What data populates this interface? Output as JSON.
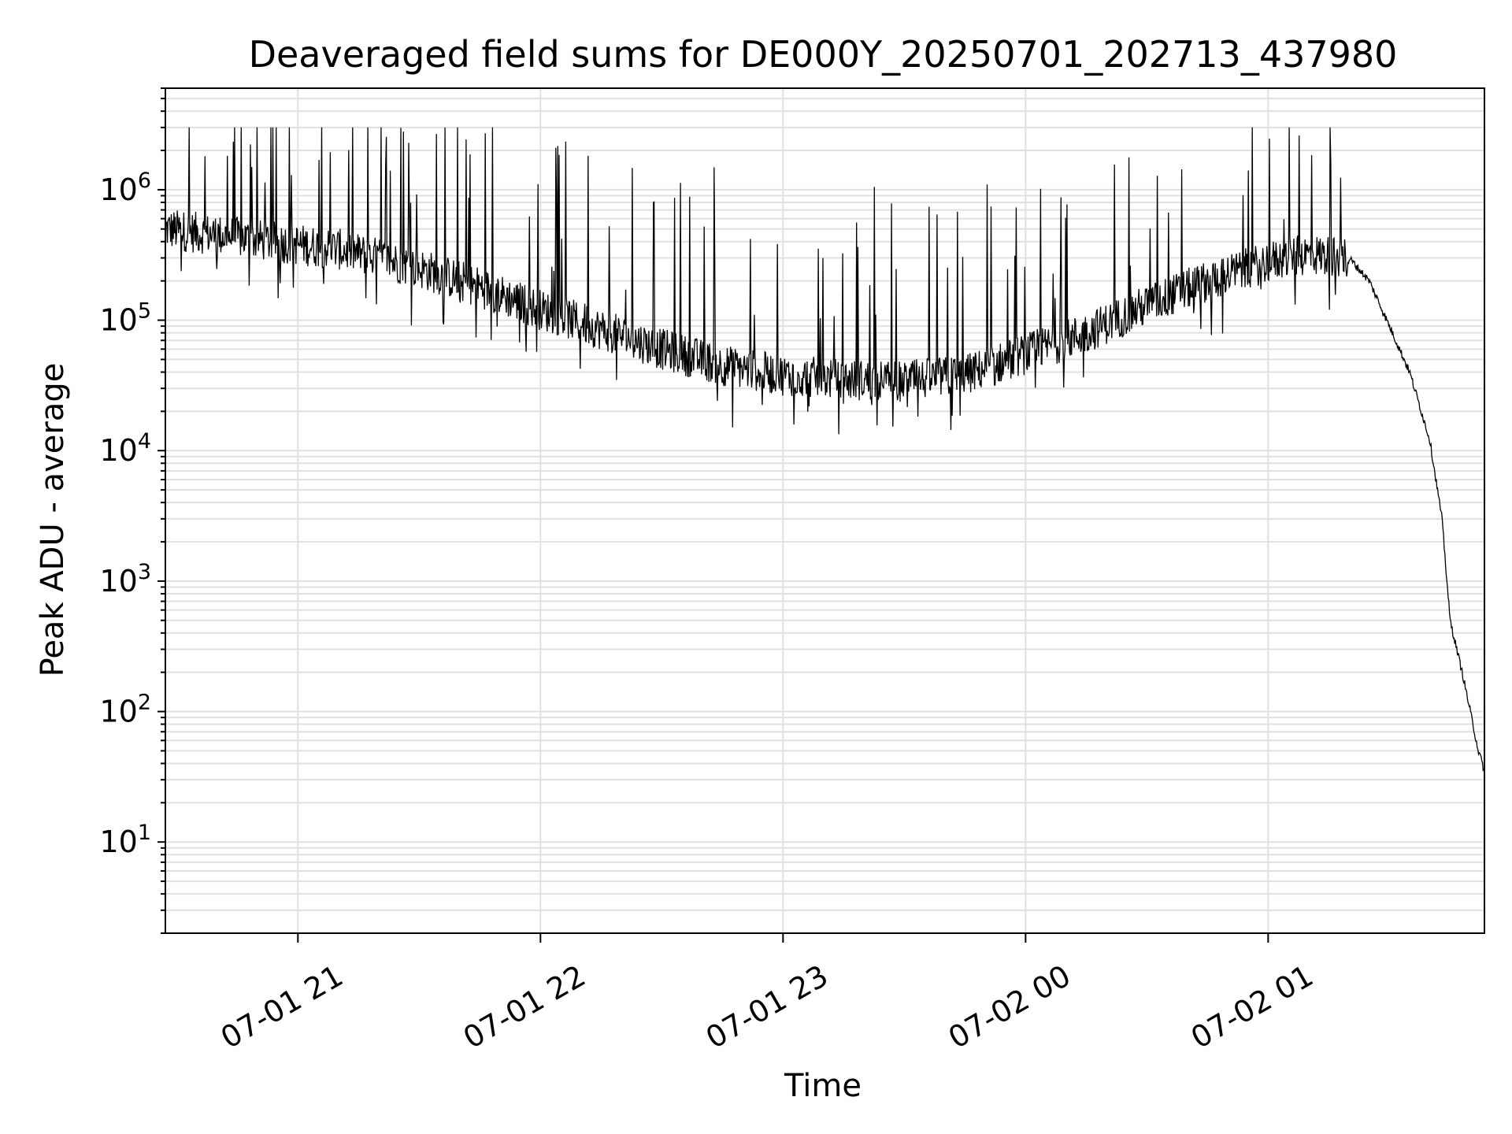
{
  "chart_data": {
    "type": "line",
    "title": "Deaveraged field sums for DE000Y_20250701_202713_437980",
    "xlabel": "Time",
    "ylabel": "Peak ADU - average",
    "yscale": "log",
    "ylim": [
      2,
      6000000
    ],
    "xlim": [
      "2025-07-01 20:27:13",
      "2025-07-02 01:53:30"
    ],
    "grid": true,
    "line_color": "#000000",
    "grid_color": "#e0e0e0",
    "x_ticks": [
      {
        "time": "2025-07-01 21:00",
        "label": "07-01 21"
      },
      {
        "time": "2025-07-01 22:00",
        "label": "07-01 22"
      },
      {
        "time": "2025-07-01 23:00",
        "label": "07-01 23"
      },
      {
        "time": "2025-07-02 00:00",
        "label": "07-02 00"
      },
      {
        "time": "2025-07-02 01:00",
        "label": "07-02 01"
      }
    ],
    "y_ticks": [
      {
        "value": 10,
        "base": "10",
        "exp": "1"
      },
      {
        "value": 100,
        "base": "10",
        "exp": "2"
      },
      {
        "value": 1000,
        "base": "10",
        "exp": "3"
      },
      {
        "value": 10000,
        "base": "10",
        "exp": "4"
      },
      {
        "value": 100000,
        "base": "10",
        "exp": "5"
      },
      {
        "value": 1000000,
        "base": "10",
        "exp": "6"
      }
    ],
    "series": [
      {
        "x": [
          "2025-07-01 20:27:13",
          "2025-07-01 20:40",
          "2025-07-01 21:00",
          "2025-07-01 21:10",
          "2025-07-01 21:20",
          "2025-07-01 21:30",
          "2025-07-01 21:45",
          "2025-07-01 22:00",
          "2025-07-01 22:15",
          "2025-07-01 22:30",
          "2025-07-01 22:45",
          "2025-07-01 23:00",
          "2025-07-01 23:15",
          "2025-07-01 23:30",
          "2025-07-01 23:45",
          "2025-07-02 00:00",
          "2025-07-02 00:15",
          "2025-07-02 00:30",
          "2025-07-02 00:45",
          "2025-07-02 01:00",
          "2025-07-02 01:10",
          "2025-07-02 01:20",
          "2025-07-02 01:25",
          "2025-07-02 01:30",
          "2025-07-02 01:35",
          "2025-07-02 01:40",
          "2025-07-02 01:43",
          "2025-07-02 01:45",
          "2025-07-02 01:48",
          "2025-07-02 01:50",
          "2025-07-02 01:52",
          "2025-07-02 01:53:30"
        ],
        "y": [
          500000,
          450000,
          380000,
          350000,
          300000,
          250000,
          180000,
          120000,
          85000,
          60000,
          45000,
          38000,
          35000,
          34000,
          38000,
          55000,
          80000,
          130000,
          200000,
          280000,
          320000,
          300000,
          200000,
          90000,
          40000,
          12000,
          3000,
          500,
          200,
          100,
          50,
          35
        ]
      }
    ]
  }
}
